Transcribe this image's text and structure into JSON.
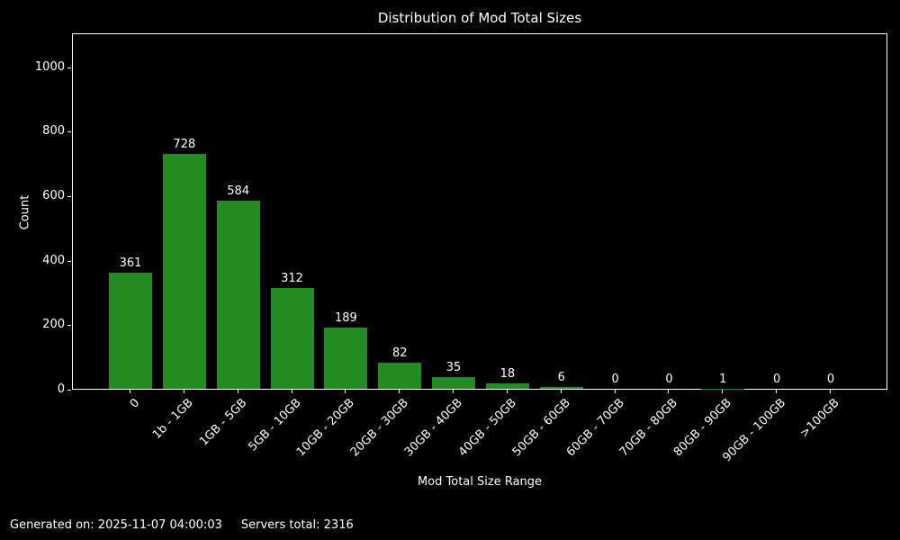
{
  "title": "Distribution of Mod Total Sizes",
  "footer": {
    "generated": "Generated on: 2025-11-07 04:00:03",
    "servers_total": "Servers total: 2316"
  },
  "chart_data": {
    "type": "bar",
    "title": "Distribution of Mod Total Sizes",
    "xlabel": "Mod Total Size Range",
    "ylabel": "Count",
    "categories": [
      "0",
      "1b - 1GB",
      "1GB - 5GB",
      "5GB - 10GB",
      "10GB - 20GB",
      "20GB - 30GB",
      "30GB - 40GB",
      "40GB - 50GB",
      "50GB - 60GB",
      "60GB - 70GB",
      "70GB - 80GB",
      "80GB - 90GB",
      "90GB - 100GB",
      ">100GB"
    ],
    "values": [
      361,
      728,
      584,
      312,
      189,
      82,
      35,
      18,
      6,
      0,
      0,
      1,
      0,
      0
    ],
    "yticks": [
      0,
      200,
      400,
      600,
      800,
      1000
    ],
    "ylim": [
      0,
      1105
    ],
    "grid": false,
    "legend": "none",
    "bar_color": "#228B22",
    "background_color": "#000000",
    "text_color": "#ffffff",
    "spine_color": "#ffffff",
    "xtick_rotation_deg": 45
  }
}
